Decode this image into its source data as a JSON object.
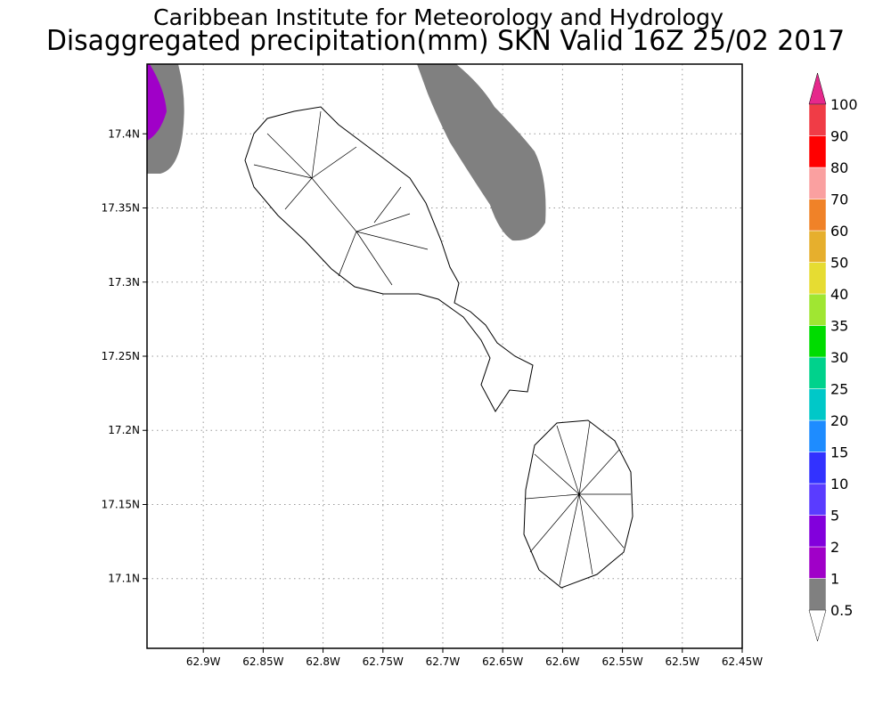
{
  "title": "Caribbean Institute for Meteorology and Hydrology",
  "subtitle": "Disaggregated precipitation(mm) SKN Valid 16Z 25/02 2017",
  "map": {
    "xlim": [
      -62.947,
      -62.45
    ],
    "ylim": [
      17.053,
      17.447
    ],
    "xticks": [
      {
        "value": -62.9,
        "label": "62.9W"
      },
      {
        "value": -62.85,
        "label": "62.85W"
      },
      {
        "value": -62.8,
        "label": "62.8W"
      },
      {
        "value": -62.75,
        "label": "62.75W"
      },
      {
        "value": -62.7,
        "label": "62.7W"
      },
      {
        "value": -62.65,
        "label": "62.65W"
      },
      {
        "value": -62.6,
        "label": "62.6W"
      },
      {
        "value": -62.55,
        "label": "62.55W"
      },
      {
        "value": -62.5,
        "label": "62.5W"
      },
      {
        "value": -62.45,
        "label": "62.45W"
      }
    ],
    "yticks": [
      {
        "value": 17.1,
        "label": "17.1N"
      },
      {
        "value": 17.15,
        "label": "17.15N"
      },
      {
        "value": 17.2,
        "label": "17.2N"
      },
      {
        "value": 17.25,
        "label": "17.25N"
      },
      {
        "value": 17.3,
        "label": "17.3N"
      },
      {
        "value": 17.35,
        "label": "17.35N"
      },
      {
        "value": 17.4,
        "label": "17.4N"
      }
    ],
    "grid": true,
    "colorbar": {
      "levels": [
        0.5,
        1,
        2,
        5,
        10,
        15,
        20,
        25,
        30,
        35,
        40,
        50,
        60,
        70,
        80,
        90,
        100
      ],
      "colors": [
        "#808080",
        "#a000c8",
        "#8200dc",
        "#5a3cff",
        "#3232ff",
        "#1e8cff",
        "#00c8c8",
        "#00d28c",
        "#00dc00",
        "#a0e632",
        "#e6dc32",
        "#e6af2d",
        "#f08228",
        "#faa0a0",
        "#ff0000",
        "#f03c46"
      ],
      "under_color": "#ffffff",
      "over_color": "#e6288c"
    }
  }
}
